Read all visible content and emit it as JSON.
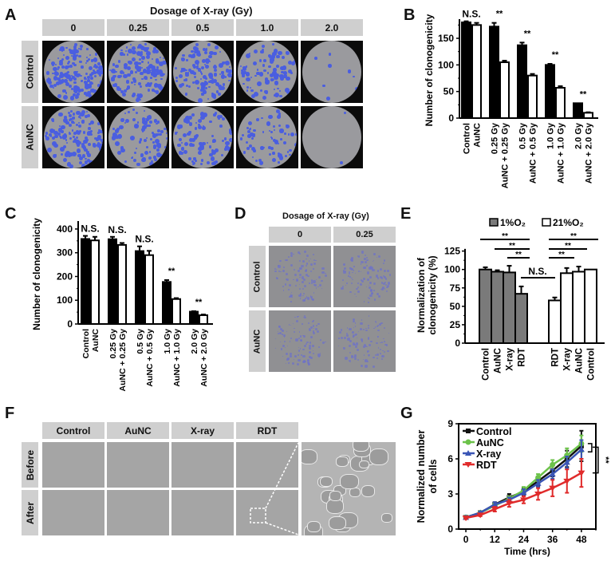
{
  "panels": {
    "A": {
      "letter": "A",
      "title": "Dosage of X-ray (Gy)",
      "columns": [
        "0",
        "0.25",
        "0.5",
        "1.0",
        "2.0"
      ],
      "rows": [
        "Control",
        "AuNC"
      ]
    },
    "B": {
      "letter": "B"
    },
    "C": {
      "letter": "C"
    },
    "D": {
      "letter": "D",
      "title": "Dosage of X-ray (Gy)",
      "columns": [
        "0",
        "0.25"
      ],
      "rows": [
        "Control",
        "AuNC"
      ]
    },
    "E": {
      "letter": "E"
    },
    "F": {
      "letter": "F",
      "columns": [
        "Control",
        "AuNC",
        "X-ray",
        "RDT"
      ],
      "rows": [
        "Before",
        "After"
      ]
    },
    "G": {
      "letter": "G"
    }
  },
  "chart_data": [
    {
      "id": "B",
      "type": "bar",
      "ylabel": "Number of clonogenicity",
      "ylim": [
        0,
        180
      ],
      "yticks": [
        0,
        50,
        100,
        150
      ],
      "categories": [
        "Control",
        "AuNC",
        "0.25 Gy",
        "AuNC + 0.25 Gy",
        "0.5 Gy",
        "AuNC + 0.5 Gy",
        "1.0 Gy",
        "AuNC + 1.0 Gy",
        "2.0 Gy",
        "AuNC + 2.0 Gy"
      ],
      "values": [
        180,
        175,
        172,
        105,
        137,
        80,
        100,
        57,
        28,
        10
      ],
      "errors": [
        2,
        4,
        7,
        3,
        5,
        3,
        2,
        3,
        0,
        1
      ],
      "fills": [
        "black",
        "white",
        "black",
        "white",
        "black",
        "white",
        "black",
        "white",
        "black",
        "white"
      ],
      "annotations": [
        {
          "pair": 0,
          "text": "N.S."
        },
        {
          "pair": 1,
          "text": "**"
        },
        {
          "pair": 2,
          "text": "**"
        },
        {
          "pair": 3,
          "text": "**"
        },
        {
          "pair": 4,
          "text": "**"
        }
      ]
    },
    {
      "id": "C",
      "type": "bar",
      "ylabel": "Number of clonogenicity",
      "ylim": [
        0,
        420
      ],
      "yticks": [
        0,
        100,
        200,
        300,
        400
      ],
      "categories": [
        "Control",
        "AuNC",
        "0.25 Gy",
        "AuNC + 0.25 Gy",
        "0.5 Gy",
        "AuNC + 0.5 Gy",
        "1.0 Gy",
        "AuNC + 1.0 Gy",
        "2.0 Gy",
        "AuNC + 2.0 Gy"
      ],
      "values": [
        358,
        352,
        357,
        333,
        307,
        290,
        177,
        105,
        52,
        37
      ],
      "errors": [
        13,
        15,
        10,
        8,
        20,
        18,
        8,
        4,
        2,
        3
      ],
      "fills": [
        "black",
        "white",
        "black",
        "white",
        "black",
        "white",
        "black",
        "white",
        "black",
        "white"
      ],
      "annotations": [
        {
          "pair": 0,
          "text": "N.S."
        },
        {
          "pair": 1,
          "text": "N.S."
        },
        {
          "pair": 2,
          "text": "N.S."
        },
        {
          "pair": 3,
          "text": "**"
        },
        {
          "pair": 4,
          "text": "**"
        }
      ]
    },
    {
      "id": "E",
      "type": "bar",
      "ylabel": "Normalization of clonogenicity (%)",
      "ylabel_lines": [
        "Normalization of",
        "clonogenicity (%)"
      ],
      "ylim": [
        0,
        130
      ],
      "yticks": [
        0,
        25,
        50,
        75,
        100,
        125
      ],
      "legend": [
        {
          "label": "1%O₂",
          "fill": "gray"
        },
        {
          "label": "21%O₂",
          "fill": "white"
        }
      ],
      "series": [
        {
          "name": "1%O2",
          "categories": [
            "Control",
            "AuNC",
            "X-ray",
            "RDT"
          ],
          "values": [
            100,
            97,
            96,
            67
          ],
          "errors": [
            3,
            2,
            9,
            10
          ]
        },
        {
          "name": "21%O2",
          "categories": [
            "RDT",
            "X-ray",
            "AuNC",
            "Control"
          ],
          "values": [
            58,
            95,
            97,
            100
          ],
          "errors": [
            4,
            7,
            7,
            0
          ]
        }
      ],
      "significance": [
        {
          "group": "1%O2",
          "from": "Control",
          "to": "RDT",
          "text": "**"
        },
        {
          "group": "1%O2",
          "from": "AuNC",
          "to": "RDT",
          "text": "**"
        },
        {
          "group": "1%O2",
          "from": "X-ray",
          "to": "RDT",
          "text": "**"
        },
        {
          "group": "21%O2",
          "from": "RDT",
          "to": "Control",
          "text": "**"
        },
        {
          "group": "21%O2",
          "from": "RDT",
          "to": "AuNC",
          "text": "**"
        },
        {
          "group": "21%O2",
          "from": "RDT",
          "to": "X-ray",
          "text": "**"
        },
        {
          "group": "between",
          "from": "RDT (1%O2)",
          "to": "RDT (21%O2)",
          "text": "N.S."
        }
      ]
    },
    {
      "id": "G",
      "type": "line",
      "xlabel": "Time (hrs)",
      "ylabel": "Normalized number of cells",
      "ylabel_lines": [
        "Normalized number",
        "of cells"
      ],
      "xlim": [
        -3,
        54
      ],
      "ylim": [
        0,
        9
      ],
      "xticks": [
        0,
        12,
        24,
        36,
        48
      ],
      "yticks": [
        0,
        3,
        6,
        9
      ],
      "x": [
        0,
        6,
        12,
        18,
        24,
        30,
        36,
        42,
        48
      ],
      "series": [
        {
          "name": "Control",
          "color": "#111111",
          "marker": "square",
          "values": [
            1.0,
            1.4,
            2.1,
            2.7,
            3.2,
            4.1,
            5.0,
            6.0,
            7.1
          ],
          "errors": [
            0.1,
            0.1,
            0.2,
            0.3,
            0.3,
            0.4,
            0.5,
            0.7,
            1.3
          ]
        },
        {
          "name": "AuNC",
          "color": "#6cc24a",
          "marker": "circle",
          "values": [
            1.0,
            1.4,
            2.0,
            2.6,
            3.3,
            4.4,
            5.5,
            6.3,
            7.3
          ],
          "errors": [
            0.1,
            0.1,
            0.2,
            0.2,
            0.3,
            0.3,
            0.4,
            0.6,
            0.7
          ]
        },
        {
          "name": "X-ray",
          "color": "#3a55b5",
          "marker": "triangle-up",
          "values": [
            1.0,
            1.4,
            2.1,
            2.5,
            3.1,
            3.9,
            4.7,
            5.7,
            6.8
          ],
          "errors": [
            0.1,
            0.1,
            0.2,
            0.2,
            0.3,
            0.3,
            0.4,
            0.5,
            0.8
          ]
        },
        {
          "name": "RDT",
          "color": "#e02b2b",
          "marker": "triangle-down",
          "values": [
            0.95,
            1.2,
            1.7,
            2.2,
            2.5,
            3.0,
            3.5,
            4.1,
            4.8
          ],
          "errors": [
            0.1,
            0.1,
            0.2,
            0.3,
            0.3,
            0.5,
            0.7,
            1.0,
            1.2
          ]
        }
      ],
      "annotation": "**"
    }
  ]
}
